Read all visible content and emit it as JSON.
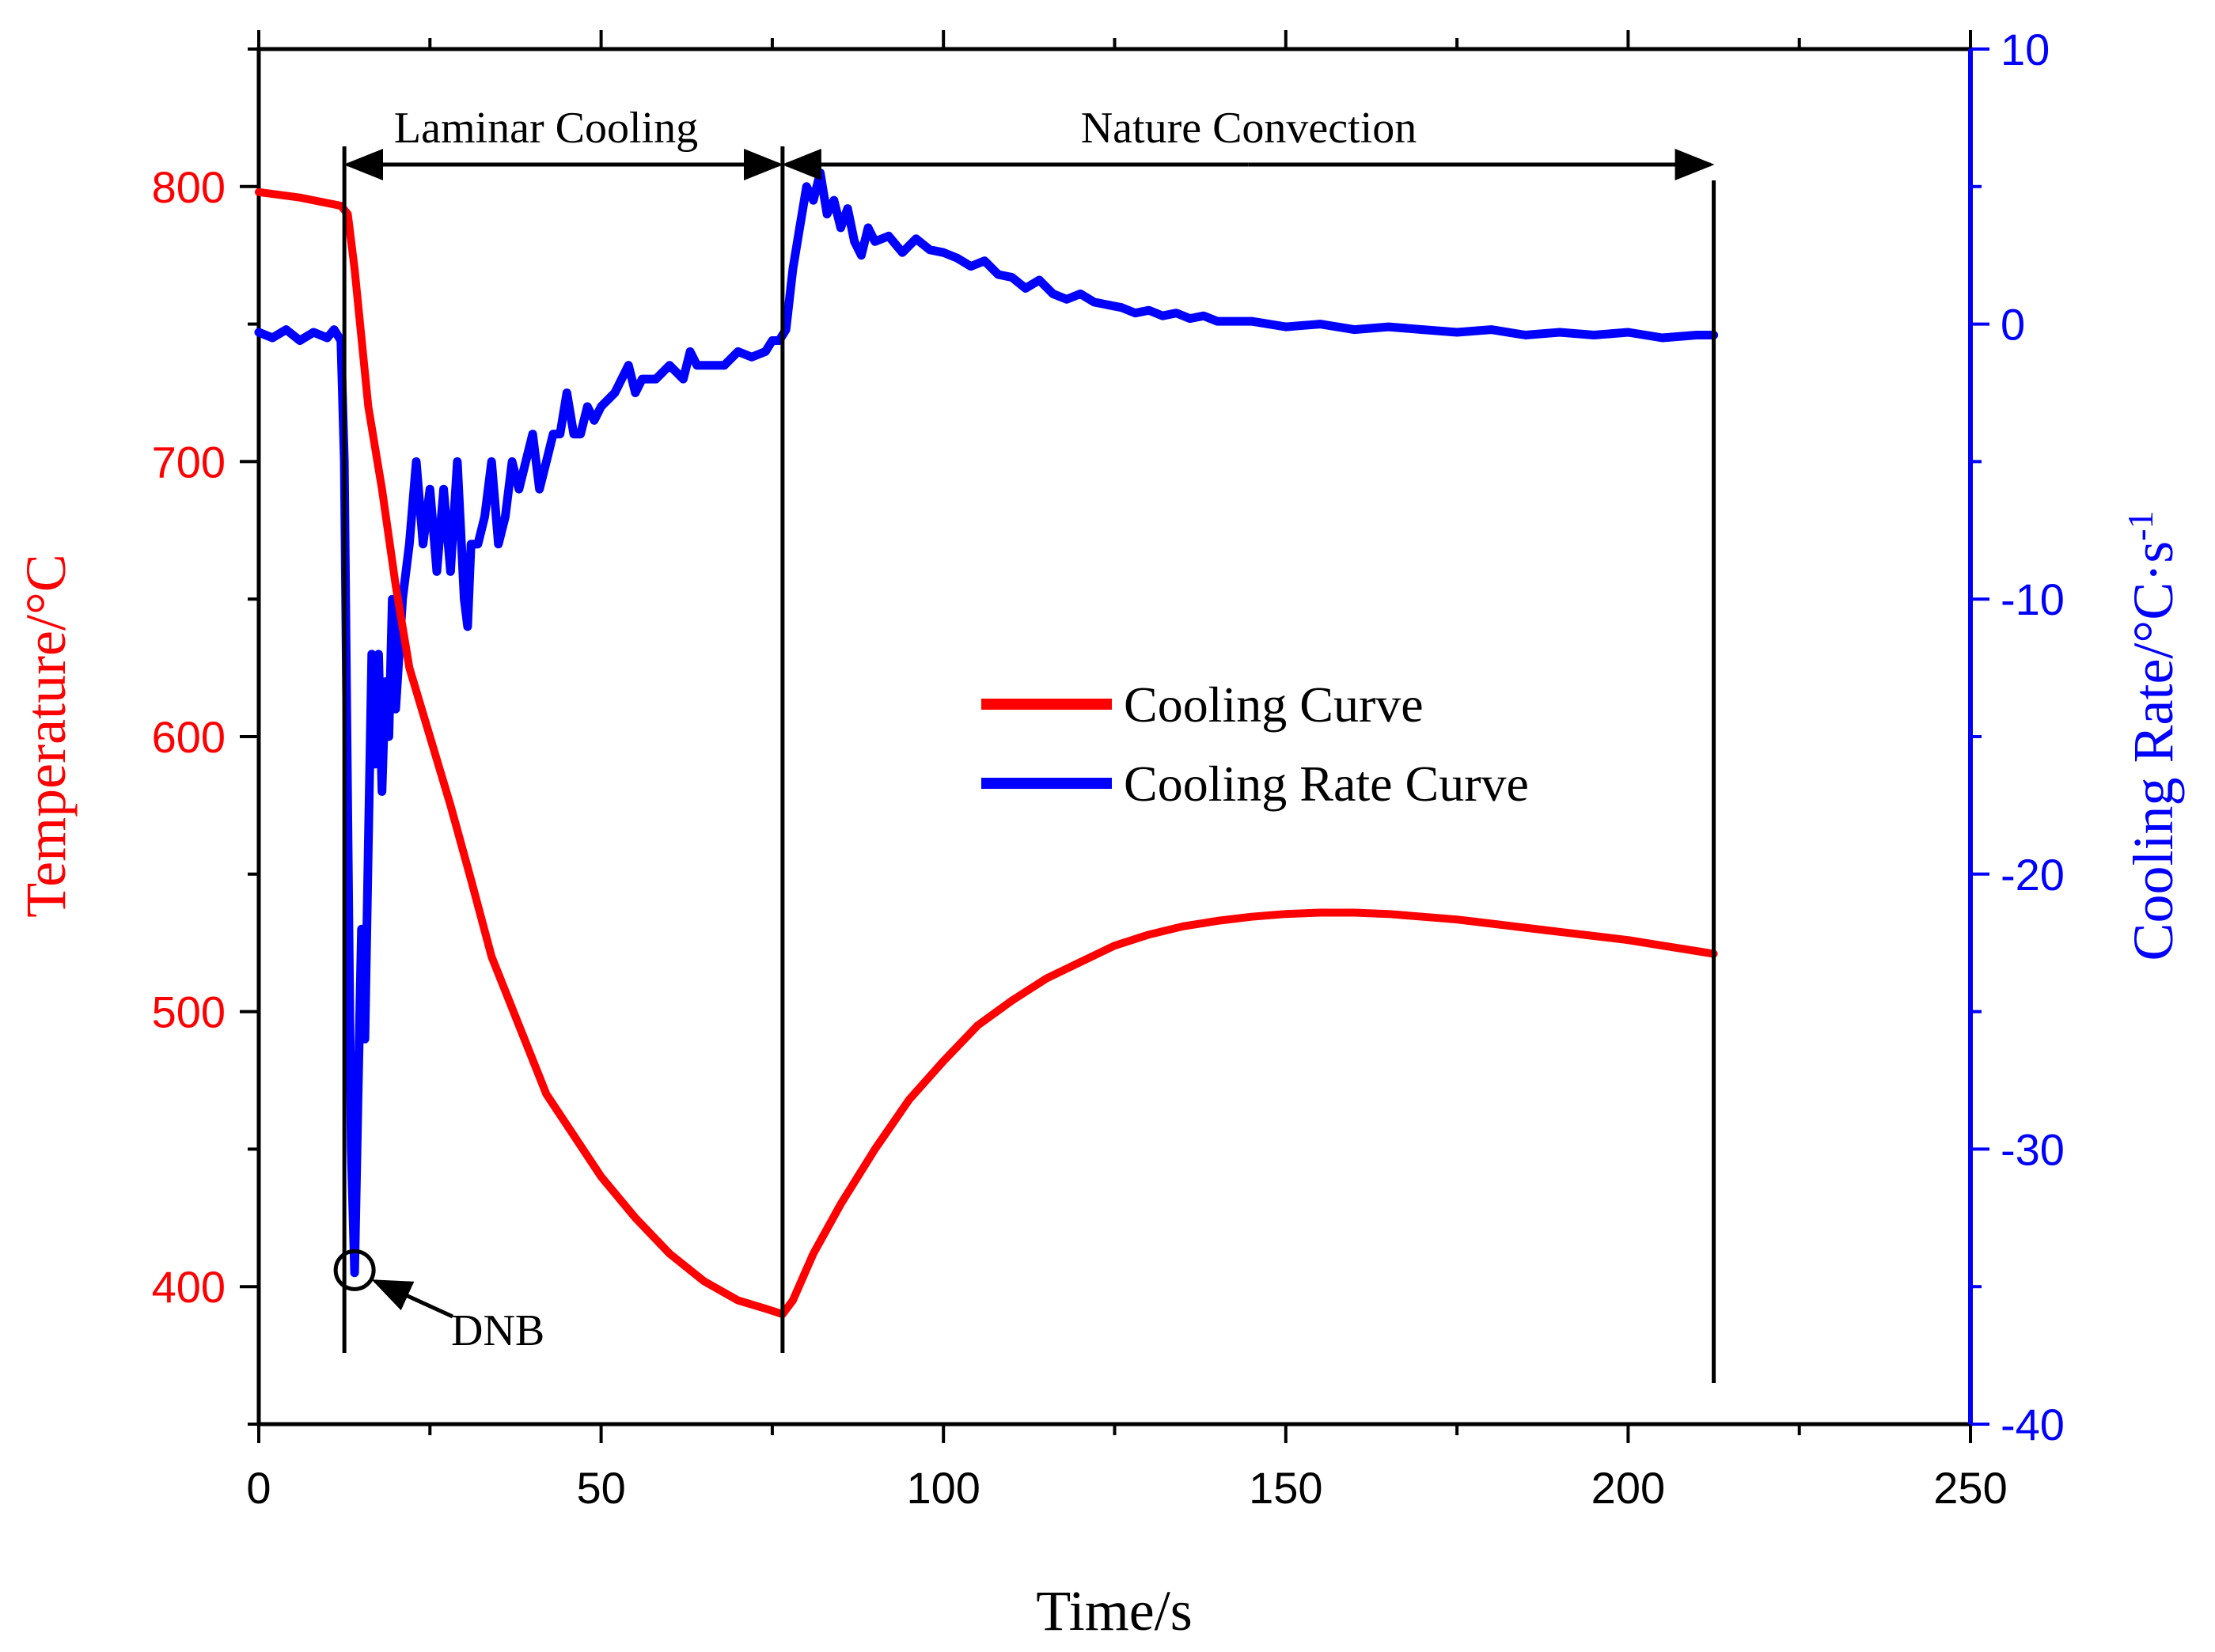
{
  "chart_data": {
    "type": "line",
    "x_axis": {
      "label": "Time/s",
      "range": [
        0,
        250
      ],
      "ticks": [
        0,
        50,
        100,
        150,
        200,
        250
      ],
      "tick_labels": [
        "0",
        "50",
        "100",
        "150",
        "200",
        "250"
      ],
      "minor_step": 25
    },
    "y_left": {
      "label": "Temperature/°C",
      "range": [
        350,
        850
      ],
      "ticks": [
        400,
        500,
        600,
        700,
        800
      ],
      "tick_labels": [
        "400",
        "500",
        "600",
        "700",
        "800"
      ],
      "minor_step": 50,
      "color": "#ff0000"
    },
    "y_right": {
      "label_main": "Cooling Rate/°C·s",
      "label_sup": "-1",
      "range": [
        -40,
        10
      ],
      "ticks": [
        -40,
        -30,
        -20,
        -10,
        0,
        10
      ],
      "tick_labels": [
        "-40",
        "-30",
        "-20",
        "-10",
        "0",
        "10"
      ],
      "minor_step": 5,
      "color": "#0000ff"
    },
    "series": [
      {
        "name": "Cooling Curve",
        "axis": "left",
        "color": "#ff0000",
        "points": [
          [
            0,
            798
          ],
          [
            6,
            796
          ],
          [
            12,
            793
          ],
          [
            13,
            790
          ],
          [
            14,
            770
          ],
          [
            16,
            720
          ],
          [
            18,
            690
          ],
          [
            20,
            655
          ],
          [
            22,
            625
          ],
          [
            25,
            600
          ],
          [
            28,
            575
          ],
          [
            31,
            548
          ],
          [
            34,
            520
          ],
          [
            38,
            495
          ],
          [
            42,
            470
          ],
          [
            46,
            455
          ],
          [
            50,
            440
          ],
          [
            55,
            425
          ],
          [
            60,
            412
          ],
          [
            65,
            402
          ],
          [
            70,
            395
          ],
          [
            74,
            392
          ],
          [
            76.5,
            390
          ],
          [
            78,
            395
          ],
          [
            81,
            412
          ],
          [
            85,
            430
          ],
          [
            90,
            450
          ],
          [
            95,
            468
          ],
          [
            100,
            482
          ],
          [
            105,
            495
          ],
          [
            110,
            504
          ],
          [
            115,
            512
          ],
          [
            120,
            518
          ],
          [
            125,
            524
          ],
          [
            130,
            528
          ],
          [
            135,
            531
          ],
          [
            140,
            533
          ],
          [
            145,
            534.5
          ],
          [
            150,
            535.5
          ],
          [
            155,
            536
          ],
          [
            160,
            536
          ],
          [
            165,
            535.5
          ],
          [
            170,
            534.5
          ],
          [
            175,
            533.5
          ],
          [
            180,
            532
          ],
          [
            185,
            530.5
          ],
          [
            190,
            529
          ],
          [
            195,
            527.5
          ],
          [
            200,
            526
          ],
          [
            205,
            524
          ],
          [
            210,
            522
          ],
          [
            212.5,
            521
          ]
        ]
      },
      {
        "name": "Cooling Rate Curve",
        "axis": "right",
        "color": "#0000ff",
        "points": [
          [
            0,
            -0.3
          ],
          [
            2,
            -0.5
          ],
          [
            4,
            -0.2
          ],
          [
            6,
            -0.6
          ],
          [
            8,
            -0.3
          ],
          [
            10,
            -0.5
          ],
          [
            11,
            -0.2
          ],
          [
            12,
            -0.6
          ],
          [
            12.5,
            -5
          ],
          [
            13,
            -18
          ],
          [
            13.5,
            -30
          ],
          [
            14,
            -34.5
          ],
          [
            14.5,
            -28
          ],
          [
            15,
            -22
          ],
          [
            15.5,
            -26
          ],
          [
            16,
            -19
          ],
          [
            16.5,
            -12
          ],
          [
            17,
            -16
          ],
          [
            17.5,
            -12
          ],
          [
            18,
            -17
          ],
          [
            18.5,
            -13
          ],
          [
            19,
            -15
          ],
          [
            19.5,
            -10
          ],
          [
            20,
            -14
          ],
          [
            21,
            -10
          ],
          [
            22,
            -8
          ],
          [
            23,
            -5
          ],
          [
            24,
            -8
          ],
          [
            25,
            -6
          ],
          [
            26,
            -9
          ],
          [
            27,
            -6
          ],
          [
            28,
            -9
          ],
          [
            29,
            -5
          ],
          [
            30,
            -10
          ],
          [
            30.5,
            -11
          ],
          [
            31,
            -8
          ],
          [
            32,
            -8
          ],
          [
            33,
            -7
          ],
          [
            34,
            -5
          ],
          [
            35,
            -8
          ],
          [
            36,
            -7
          ],
          [
            37,
            -5
          ],
          [
            38,
            -6
          ],
          [
            39,
            -5
          ],
          [
            40,
            -4
          ],
          [
            41,
            -6
          ],
          [
            42,
            -5
          ],
          [
            43,
            -4
          ],
          [
            44,
            -4
          ],
          [
            45,
            -2.5
          ],
          [
            46,
            -4
          ],
          [
            47,
            -4
          ],
          [
            48,
            -3
          ],
          [
            49,
            -3.5
          ],
          [
            50,
            -3
          ],
          [
            52,
            -2.5
          ],
          [
            54,
            -1.5
          ],
          [
            55,
            -2.5
          ],
          [
            56,
            -2
          ],
          [
            58,
            -2
          ],
          [
            60,
            -1.5
          ],
          [
            62,
            -2
          ],
          [
            63,
            -1
          ],
          [
            64,
            -1.5
          ],
          [
            66,
            -1.5
          ],
          [
            68,
            -1.5
          ],
          [
            70,
            -1
          ],
          [
            72,
            -1.2
          ],
          [
            74,
            -1
          ],
          [
            75,
            -0.6
          ],
          [
            76,
            -0.6
          ],
          [
            77,
            -0.2
          ],
          [
            78,
            2
          ],
          [
            79,
            3.5
          ],
          [
            80,
            5
          ],
          [
            81,
            4.5
          ],
          [
            82,
            5.5
          ],
          [
            83,
            4
          ],
          [
            84,
            4.5
          ],
          [
            85,
            3.5
          ],
          [
            86,
            4.2
          ],
          [
            87,
            3
          ],
          [
            88,
            2.5
          ],
          [
            89,
            3.5
          ],
          [
            90,
            3
          ],
          [
            92,
            3.2
          ],
          [
            94,
            2.6
          ],
          [
            96,
            3.1
          ],
          [
            98,
            2.7
          ],
          [
            100,
            2.6
          ],
          [
            102,
            2.4
          ],
          [
            104,
            2.1
          ],
          [
            106,
            2.3
          ],
          [
            108,
            1.8
          ],
          [
            110,
            1.7
          ],
          [
            112,
            1.3
          ],
          [
            114,
            1.6
          ],
          [
            116,
            1.1
          ],
          [
            118,
            0.9
          ],
          [
            120,
            1.1
          ],
          [
            122,
            0.8
          ],
          [
            124,
            0.7
          ],
          [
            126,
            0.6
          ],
          [
            128,
            0.4
          ],
          [
            130,
            0.5
          ],
          [
            132,
            0.3
          ],
          [
            134,
            0.4
          ],
          [
            136,
            0.2
          ],
          [
            138,
            0.3
          ],
          [
            140,
            0.1
          ],
          [
            145,
            0.1
          ],
          [
            150,
            -0.1
          ],
          [
            155,
            0
          ],
          [
            160,
            -0.2
          ],
          [
            165,
            -0.1
          ],
          [
            170,
            -0.2
          ],
          [
            175,
            -0.3
          ],
          [
            180,
            -0.2
          ],
          [
            185,
            -0.4
          ],
          [
            190,
            -0.3
          ],
          [
            195,
            -0.4
          ],
          [
            200,
            -0.3
          ],
          [
            205,
            -0.5
          ],
          [
            210,
            -0.4
          ],
          [
            212.5,
            -0.4
          ]
        ]
      }
    ],
    "legend": {
      "placement": "center-right",
      "entries": [
        "Cooling Curve",
        "Cooling Rate Curve"
      ]
    },
    "annotations": {
      "laminar_label": "Laminar Cooling",
      "nature_label": "Nature Convection",
      "dnb_label": "DNB",
      "region_boundaries_time": [
        12.5,
        76.5,
        212.5
      ],
      "dnb_time": 14,
      "dnb_temperature": 406
    }
  }
}
